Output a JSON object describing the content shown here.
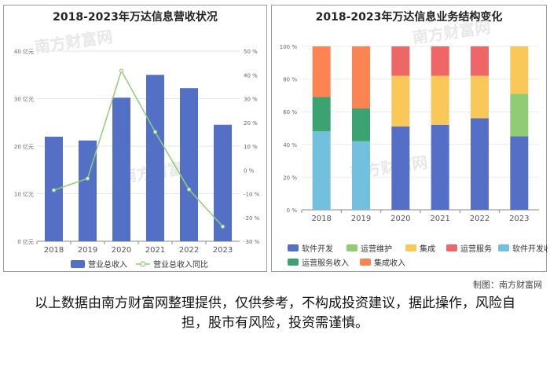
{
  "colors": {
    "bar_revenue": "#5470c6",
    "line_yoy": "#91cc75",
    "software_dev": "#5470c6",
    "ops_maintenance": "#91cc75",
    "integration": "#fac858",
    "ops_service": "#ee6666",
    "software_dev_income": "#73c0de",
    "ops_service_income": "#3ba272",
    "integration_income": "#fc8452"
  },
  "watermark": "南方财富网",
  "credit": "制图：南方财富网",
  "disclaimer": "以上数据由南方财富网整理提供，仅供参考，不构成投资建议，据此操作，风险自担，股市有风险，投资需谨慎。",
  "chart_data": [
    {
      "type": "bar",
      "title": "2018-2023年万达信息营收状况",
      "categories": [
        "2018",
        "2019",
        "2020",
        "2021",
        "2022",
        "2023"
      ],
      "y_left": {
        "ticks": [
          "0 亿元",
          "10 亿元",
          "20 亿元",
          "30 亿元",
          "40 亿元"
        ],
        "ylim": [
          0,
          40
        ]
      },
      "y_right": {
        "ticks": [
          "-30 %",
          "-20 %",
          "-10 %",
          "0 %",
          "10 %",
          "20 %",
          "30 %",
          "40 %",
          "50 %"
        ],
        "ylim": [
          -30,
          50
        ]
      },
      "series": [
        {
          "name": "营业总收入",
          "type": "bar",
          "axis": "left",
          "values": [
            22.0,
            21.2,
            30.2,
            35.0,
            32.2,
            24.5
          ]
        },
        {
          "name": "营业总收入同比",
          "type": "line",
          "axis": "right",
          "values": [
            -8.5,
            -3.6,
            41.7,
            16.0,
            -8.2,
            -23.8
          ]
        }
      ]
    },
    {
      "type": "bar",
      "stacked": true,
      "title": "2018-2023年万达信息业务结构变化",
      "categories": [
        "2018",
        "2019",
        "2020",
        "2021",
        "2022",
        "2023"
      ],
      "y": {
        "ticks": [
          "0 %",
          "20 %",
          "40 %",
          "60 %",
          "80 %",
          "100 %"
        ],
        "ylim": [
          0,
          100
        ]
      },
      "series": [
        {
          "name": "软件开发",
          "values": [
            0,
            0,
            51,
            52,
            56,
            45
          ]
        },
        {
          "name": "运营维护",
          "values": [
            0,
            0,
            0,
            0,
            0,
            26
          ]
        },
        {
          "name": "集成",
          "values": [
            0,
            0,
            31,
            30,
            26,
            29
          ]
        },
        {
          "name": "运营服务",
          "values": [
            0,
            0,
            18,
            18,
            18,
            0
          ]
        },
        {
          "name": "软件开发收入",
          "values": [
            48,
            42,
            0,
            0,
            0,
            0
          ]
        },
        {
          "name": "运营服务收入",
          "values": [
            21,
            20,
            0,
            0,
            0,
            0
          ]
        },
        {
          "name": "集成收入",
          "values": [
            31,
            38,
            0,
            0,
            0,
            0
          ]
        }
      ]
    }
  ]
}
